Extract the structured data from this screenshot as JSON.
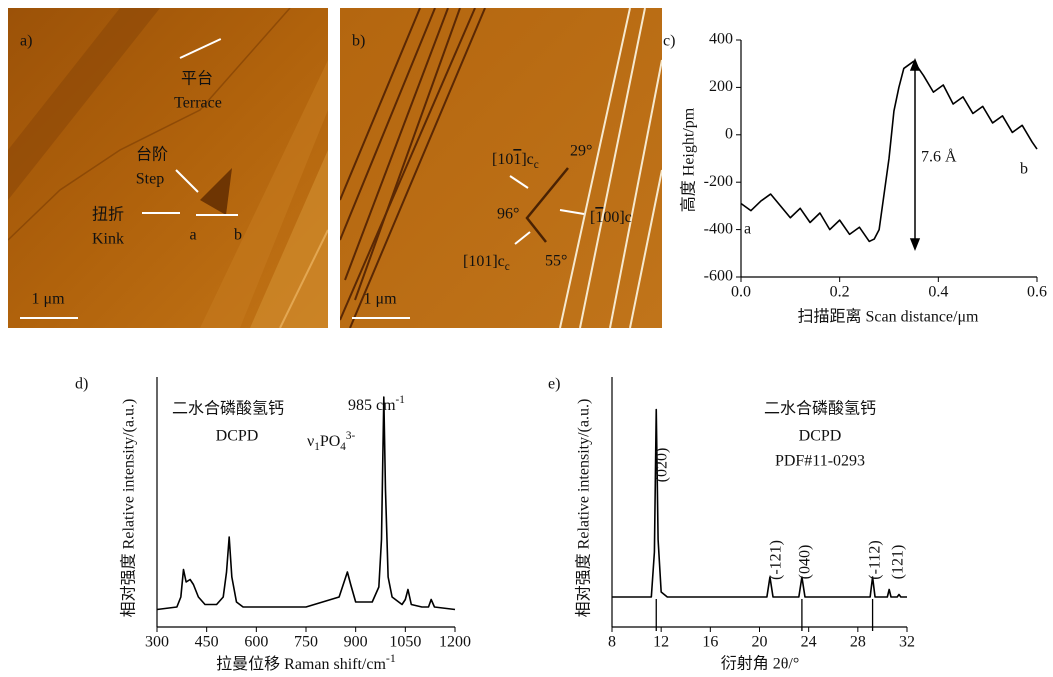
{
  "images": [
    {
      "label": "a)",
      "scale_bar": "1 μm",
      "annotations": [
        "平台",
        "Terrace",
        "台阶",
        "Step",
        "扭折",
        "Kink",
        "a",
        "b"
      ]
    },
    {
      "label": "b)",
      "scale_bar": "1 μm",
      "annotations": [
        [
          "[10",
          "1",
          "]c",
          "c"
        ],
        "29°",
        "96°",
        [
          "[",
          "1",
          "00]c"
        ],
        [
          "[101]c",
          "c"
        ],
        "55°"
      ]
    }
  ],
  "chart_data": [
    {
      "type": "line",
      "label": "c)",
      "x_label": "扫描距离 Scan distance/μm",
      "y_label": "高度 Height/pm",
      "x": [
        0,
        0.02,
        0.04,
        0.06,
        0.08,
        0.1,
        0.12,
        0.14,
        0.16,
        0.18,
        0.2,
        0.22,
        0.24,
        0.26,
        0.27,
        0.28,
        0.29,
        0.3,
        0.31,
        0.32,
        0.33,
        0.35,
        0.37,
        0.39,
        0.41,
        0.43,
        0.45,
        0.47,
        0.49,
        0.51,
        0.53,
        0.55,
        0.57,
        0.59,
        0.6
      ],
      "values": [
        -290,
        -320,
        -280,
        -250,
        -300,
        -350,
        -310,
        -370,
        -330,
        -400,
        -360,
        -420,
        -390,
        -450,
        -440,
        -400,
        -250,
        -100,
        100,
        200,
        280,
        310,
        250,
        180,
        210,
        130,
        160,
        90,
        120,
        50,
        80,
        10,
        40,
        -30,
        -60
      ],
      "color": "#000000",
      "xlim": [
        0,
        0.6
      ],
      "ylim": [
        -600,
        400
      ],
      "xticks": [
        {
          "value": 0,
          "label": "0.0"
        },
        0.2,
        0.4,
        0.6
      ],
      "yticks": [
        -600,
        -400,
        -200,
        0,
        200,
        400
      ],
      "annotations": [
        "7.6 Å",
        "a",
        "b"
      ]
    },
    {
      "type": "line",
      "label": "d)",
      "x_label": [
        "拉曼位移  Raman shift/cm",
        "-1"
      ],
      "y_label": "相对强度  Relative intensity/(a.u.)",
      "x": [
        300,
        360,
        372,
        380,
        388,
        400,
        410,
        425,
        445,
        480,
        500,
        510,
        518,
        526,
        540,
        560,
        650,
        750,
        800,
        850,
        865,
        875,
        885,
        900,
        950,
        970,
        978,
        985,
        990,
        998,
        1010,
        1040,
        1050,
        1058,
        1068,
        1100,
        1120,
        1128,
        1138,
        1200
      ],
      "values": [
        7,
        8,
        12,
        23,
        18,
        19,
        17,
        12,
        9,
        9,
        12,
        22,
        36,
        20,
        10,
        8,
        8,
        8,
        10,
        12,
        18,
        22,
        17,
        10,
        10,
        16,
        35,
        92,
        55,
        20,
        12,
        9,
        11,
        15,
        9,
        8,
        8,
        11,
        8,
        7
      ],
      "color": "#000000",
      "xlim": [
        300,
        1200
      ],
      "ylim": [
        0,
        100
      ],
      "xticks": [
        300,
        450,
        600,
        750,
        900,
        1050,
        1200
      ],
      "annotations": [
        "二水合磷酸氢钙",
        "DCPD",
        [
          "985 cm",
          "-1"
        ],
        [
          "ν",
          "1",
          "PO",
          "4",
          "3-"
        ]
      ]
    },
    {
      "type": "line",
      "label": "e)",
      "x_label": "衍射角 2θ/°",
      "y_label": "相对强度  Relative intensity/(a.u.)",
      "x": [
        8,
        11.2,
        11.45,
        11.6,
        11.75,
        12,
        12.5,
        20.6,
        20.85,
        21.1,
        23.2,
        23.45,
        23.7,
        29,
        29.2,
        29.4,
        30.4,
        30.55,
        30.7,
        31.2,
        31.35,
        31.5,
        32
      ],
      "values": [
        12,
        12,
        30,
        87,
        35,
        14,
        12,
        12,
        20,
        12,
        12,
        20,
        12,
        12,
        20,
        12,
        12,
        15,
        12,
        12,
        13,
        12,
        12
      ],
      "reference_x": [
        11.6,
        23.45,
        29.2
      ],
      "color": "#000000",
      "xlim": [
        8,
        32
      ],
      "ylim": [
        0,
        100
      ],
      "xticks": [
        8,
        12,
        16,
        20,
        24,
        28,
        32
      ],
      "annotations": [
        "二水合磷酸氢钙",
        "DCPD",
        "PDF#11-0293",
        "(020)",
        "(-121)",
        "(040)",
        "(-112)",
        "(121)"
      ]
    }
  ]
}
